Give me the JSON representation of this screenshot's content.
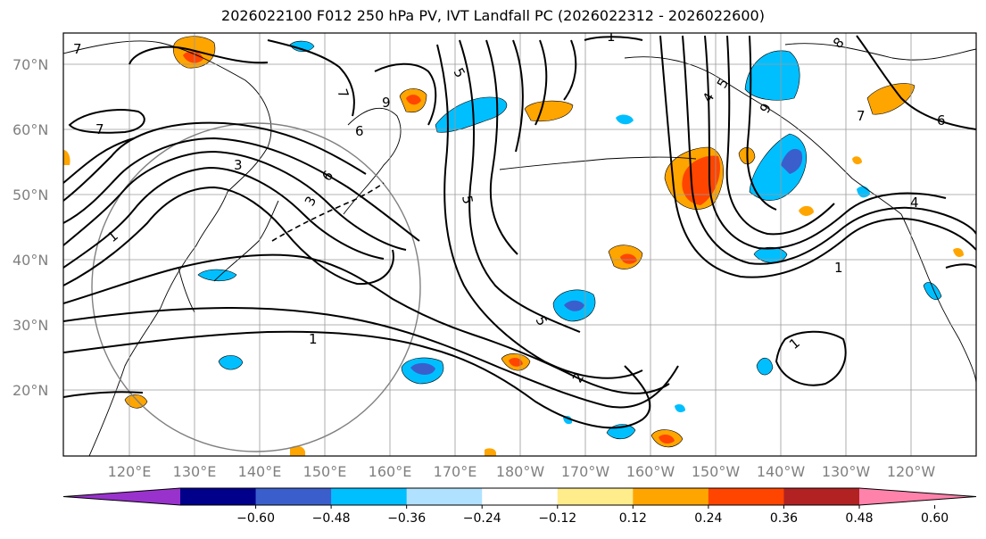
{
  "title": "2026022100 F012 250 hPa PV, IVT Landfall PC (2026022312 - 2026022600)",
  "lat_labels": [
    "70°N",
    "60°N",
    "50°N",
    "40°N",
    "30°N",
    "20°N"
  ],
  "lon_labels": [
    "120°E",
    "130°E",
    "140°E",
    "150°E",
    "160°E",
    "170°E",
    "180°W",
    "170°W",
    "160°W",
    "150°W",
    "140°W",
    "130°W",
    "120°W"
  ],
  "colorbar": {
    "tick_labels": [
      "−0.60",
      "−0.48",
      "−0.36",
      "−0.24",
      "−0.12",
      "0.12",
      "0.24",
      "0.36",
      "0.48",
      "0.60"
    ],
    "colors": [
      "#9932CC",
      "#00008B",
      "#3A5FCD",
      "#00BFFF",
      "#B0E2FF",
      "#FFFFFF",
      "#FFEC8B",
      "#FFA500",
      "#FF4500",
      "#B22222",
      "#FF82AB"
    ]
  },
  "contour_labels": [
    "7",
    "7",
    "7",
    "1",
    "1",
    "1",
    "1",
    "1",
    "5",
    "5",
    "5",
    "4",
    "5",
    "4",
    "3",
    "9",
    "9",
    "6",
    "6",
    "6",
    "3",
    "2",
    "7",
    "8"
  ]
}
